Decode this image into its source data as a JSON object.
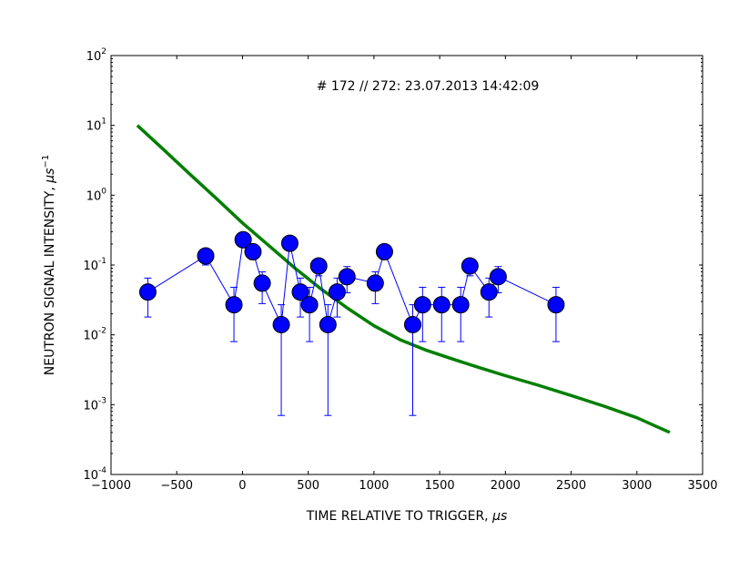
{
  "chart_data": {
    "type": "scatter",
    "annotation": "# 172 // 272: 23.07.2013 14:42:09",
    "xlabel": "TIME RELATIVE TO TRIGGER, ",
    "xlabel_unit": "μs",
    "ylabel": "NEUTRON SIGNAL INTENSITY, ",
    "ylabel_unit": "μs",
    "ylabel_exp": "−1",
    "xlim": [
      -1000,
      3500
    ],
    "ylim": [
      0.0001,
      100
    ],
    "yscale": "log",
    "grid": false,
    "x_ticks": [
      {
        "value": -1000,
        "label": "−1000"
      },
      {
        "value": -500,
        "label": "−500"
      },
      {
        "value": 0,
        "label": "0"
      },
      {
        "value": 500,
        "label": "500"
      },
      {
        "value": 1000,
        "label": "1000"
      },
      {
        "value": 1500,
        "label": "1500"
      },
      {
        "value": 2000,
        "label": "2000"
      },
      {
        "value": 2500,
        "label": "2500"
      },
      {
        "value": 3000,
        "label": "3000"
      },
      {
        "value": 3500,
        "label": "3500"
      }
    ],
    "y_ticks": [
      {
        "value": 0.0001,
        "base": "10",
        "exp": "-4"
      },
      {
        "value": 0.001,
        "base": "10",
        "exp": "-3"
      },
      {
        "value": 0.01,
        "base": "10",
        "exp": "-2"
      },
      {
        "value": 0.1,
        "base": "10",
        "exp": "-1"
      },
      {
        "value": 1,
        "base": "10",
        "exp": "0"
      },
      {
        "value": 10,
        "base": "10",
        "exp": "1"
      },
      {
        "value": 100,
        "base": "10",
        "exp": "2"
      }
    ],
    "series": [
      {
        "color": "#0000ff",
        "marker": "circle",
        "errorbars": true,
        "points": [
          {
            "x": -720,
            "y": 0.041,
            "lo": 0.018,
            "hi": 0.065
          },
          {
            "x": -280,
            "y": 0.135,
            "lo": 0.1,
            "hi": 0.16
          },
          {
            "x": -65,
            "y": 0.027,
            "lo": 0.008,
            "hi": 0.048
          },
          {
            "x": 5,
            "y": 0.23,
            "lo": 0.19,
            "hi": 0.27
          },
          {
            "x": 80,
            "y": 0.155,
            "lo": 0.12,
            "hi": 0.19
          },
          {
            "x": 150,
            "y": 0.055,
            "lo": 0.028,
            "hi": 0.08
          },
          {
            "x": 295,
            "y": 0.014,
            "lo": 0.0007,
            "hi": 0.027
          },
          {
            "x": 360,
            "y": 0.205,
            "lo": 0.16,
            "hi": 0.25
          },
          {
            "x": 440,
            "y": 0.041,
            "lo": 0.018,
            "hi": 0.065
          },
          {
            "x": 510,
            "y": 0.027,
            "lo": 0.008,
            "hi": 0.048
          },
          {
            "x": 580,
            "y": 0.097,
            "lo": 0.07,
            "hi": 0.12
          },
          {
            "x": 650,
            "y": 0.014,
            "lo": 0.0007,
            "hi": 0.027
          },
          {
            "x": 720,
            "y": 0.041,
            "lo": 0.018,
            "hi": 0.065
          },
          {
            "x": 795,
            "y": 0.068,
            "lo": 0.04,
            "hi": 0.095
          },
          {
            "x": 1010,
            "y": 0.055,
            "lo": 0.028,
            "hi": 0.08
          },
          {
            "x": 1080,
            "y": 0.155,
            "lo": 0.12,
            "hi": 0.19
          },
          {
            "x": 1295,
            "y": 0.014,
            "lo": 0.0007,
            "hi": 0.027
          },
          {
            "x": 1370,
            "y": 0.027,
            "lo": 0.008,
            "hi": 0.048
          },
          {
            "x": 1515,
            "y": 0.027,
            "lo": 0.008,
            "hi": 0.048
          },
          {
            "x": 1660,
            "y": 0.027,
            "lo": 0.008,
            "hi": 0.048
          },
          {
            "x": 1730,
            "y": 0.097,
            "lo": 0.07,
            "hi": 0.12
          },
          {
            "x": 1875,
            "y": 0.041,
            "lo": 0.018,
            "hi": 0.065
          },
          {
            "x": 1945,
            "y": 0.068,
            "lo": 0.04,
            "hi": 0.095
          },
          {
            "x": 2385,
            "y": 0.027,
            "lo": 0.008,
            "hi": 0.048
          }
        ]
      },
      {
        "color": "#007f00",
        "type": "line",
        "points": [
          {
            "x": -800,
            "y": 10
          },
          {
            "x": -600,
            "y": 4.5
          },
          {
            "x": -400,
            "y": 2.0
          },
          {
            "x": -200,
            "y": 0.9
          },
          {
            "x": 0,
            "y": 0.4
          },
          {
            "x": 200,
            "y": 0.19
          },
          {
            "x": 400,
            "y": 0.09
          },
          {
            "x": 600,
            "y": 0.045
          },
          {
            "x": 800,
            "y": 0.024
          },
          {
            "x": 1000,
            "y": 0.0135
          },
          {
            "x": 1200,
            "y": 0.0085
          },
          {
            "x": 1400,
            "y": 0.006
          },
          {
            "x": 1600,
            "y": 0.0045
          },
          {
            "x": 1800,
            "y": 0.0034
          },
          {
            "x": 2000,
            "y": 0.0026
          },
          {
            "x": 2250,
            "y": 0.0019
          },
          {
            "x": 2500,
            "y": 0.00135
          },
          {
            "x": 2750,
            "y": 0.00095
          },
          {
            "x": 3000,
            "y": 0.00065
          },
          {
            "x": 3250,
            "y": 0.0004
          }
        ]
      }
    ]
  }
}
